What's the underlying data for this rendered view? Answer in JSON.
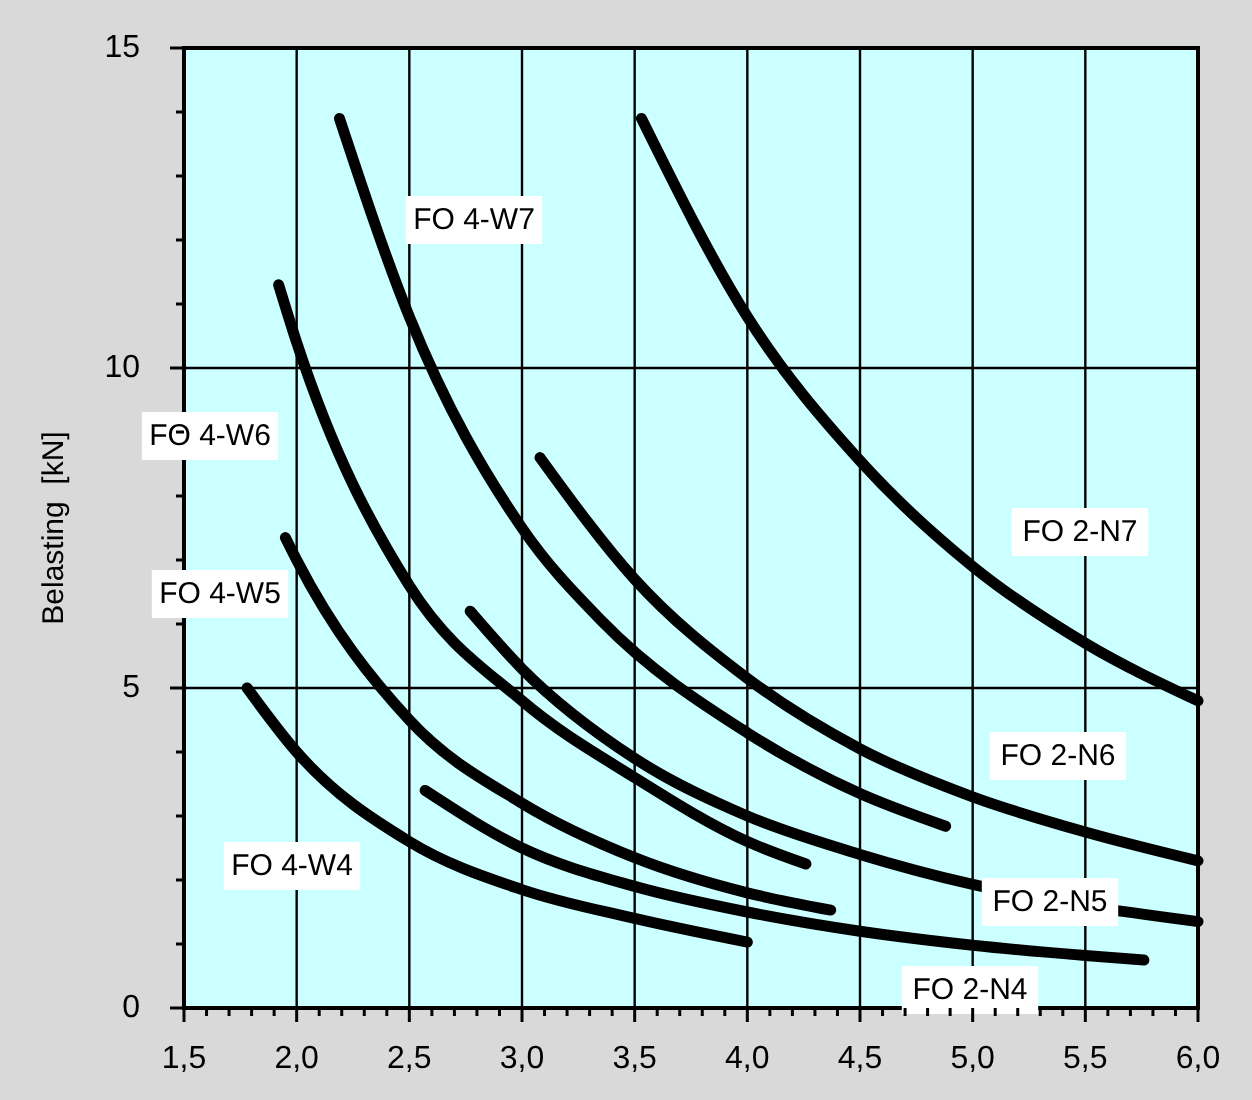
{
  "chart_data": {
    "type": "line",
    "ylabel": "Belasting  [kN]",
    "xlim": [
      1.5,
      6.0
    ],
    "ylim": [
      0,
      15
    ],
    "xticks": [
      {
        "value": 1.5,
        "label": "1,5"
      },
      {
        "value": 1.6,
        "label": null
      },
      {
        "value": 1.7,
        "label": null
      },
      {
        "value": 1.8,
        "label": null
      },
      {
        "value": 1.9,
        "label": null
      },
      {
        "value": 2.0,
        "label": "2,0"
      },
      {
        "value": 2.1,
        "label": null
      },
      {
        "value": 2.2,
        "label": null
      },
      {
        "value": 2.3,
        "label": null
      },
      {
        "value": 2.4,
        "label": null
      },
      {
        "value": 2.5,
        "label": "2,5"
      },
      {
        "value": 2.6,
        "label": null
      },
      {
        "value": 2.7,
        "label": null
      },
      {
        "value": 2.8,
        "label": null
      },
      {
        "value": 2.9,
        "label": null
      },
      {
        "value": 3.0,
        "label": "3,0"
      },
      {
        "value": 3.1,
        "label": null
      },
      {
        "value": 3.2,
        "label": null
      },
      {
        "value": 3.3,
        "label": null
      },
      {
        "value": 3.4,
        "label": null
      },
      {
        "value": 3.5,
        "label": "3,5"
      },
      {
        "value": 3.6,
        "label": null
      },
      {
        "value": 3.7,
        "label": null
      },
      {
        "value": 3.8,
        "label": null
      },
      {
        "value": 3.9,
        "label": null
      },
      {
        "value": 4.0,
        "label": "4,0"
      },
      {
        "value": 4.1,
        "label": null
      },
      {
        "value": 4.2,
        "label": null
      },
      {
        "value": 4.3,
        "label": null
      },
      {
        "value": 4.4,
        "label": null
      },
      {
        "value": 4.5,
        "label": "4,5"
      },
      {
        "value": 4.6,
        "label": null
      },
      {
        "value": 4.7,
        "label": null
      },
      {
        "value": 4.8,
        "label": null
      },
      {
        "value": 4.9,
        "label": null
      },
      {
        "value": 5.0,
        "label": "5,0"
      },
      {
        "value": 5.1,
        "label": null
      },
      {
        "value": 5.2,
        "label": null
      },
      {
        "value": 5.3,
        "label": null
      },
      {
        "value": 5.4,
        "label": null
      },
      {
        "value": 5.5,
        "label": "5,5"
      },
      {
        "value": 5.6,
        "label": null
      },
      {
        "value": 5.7,
        "label": null
      },
      {
        "value": 5.8,
        "label": null
      },
      {
        "value": 5.9,
        "label": null
      },
      {
        "value": 6.0,
        "label": "6,0"
      }
    ],
    "yticks": [
      0,
      {
        "value": 1,
        "label": null
      },
      {
        "value": 2,
        "label": null
      },
      {
        "value": 3,
        "label": null
      },
      {
        "value": 4,
        "label": null
      },
      5,
      {
        "value": 6,
        "label": null
      },
      {
        "value": 7,
        "label": null
      },
      {
        "value": 8,
        "label": null
      },
      {
        "value": 9,
        "label": null
      },
      10,
      {
        "value": 11,
        "label": null
      },
      {
        "value": 12,
        "label": null
      },
      {
        "value": 13,
        "label": null
      },
      {
        "value": 14,
        "label": null
      },
      15
    ],
    "grid": true,
    "marker": "none",
    "line_style": "solid",
    "series": [
      {
        "color": "#000000",
        "x": [
          2.19,
          2.5,
          3.0,
          3.35,
          4.0,
          4.5,
          4.88
        ],
        "values": [
          13.9,
          10.8,
          7.5,
          6.06,
          4.3,
          3.35,
          2.84
        ]
      },
      {
        "color": "#000000",
        "x": [
          1.92,
          2.0,
          2.5,
          3.0,
          3.5,
          4.0,
          4.26
        ],
        "values": [
          11.3,
          10.4,
          6.6,
          4.8,
          3.6,
          2.6,
          2.25
        ]
      },
      {
        "color": "#000000",
        "x": [
          1.95,
          2.0,
          2.5,
          3.0,
          3.5,
          4.0,
          4.37
        ],
        "values": [
          7.35,
          7.0,
          4.5,
          3.2,
          2.35,
          1.8,
          1.53
        ]
      },
      {
        "color": "#000000",
        "x": [
          1.78,
          2.0,
          2.5,
          3.0,
          3.5,
          4.0
        ],
        "values": [
          5.0,
          4.0,
          2.6,
          1.85,
          1.4,
          1.03
        ]
      },
      {
        "color": "#000000",
        "x": [
          3.53,
          4.0,
          4.5,
          5.0,
          5.5,
          6.0
        ],
        "values": [
          13.9,
          10.8,
          8.55,
          6.9,
          5.7,
          4.8
        ]
      },
      {
        "color": "#000000",
        "x": [
          3.08,
          3.5,
          4.0,
          4.5,
          5.0,
          5.5,
          6.0
        ],
        "values": [
          8.6,
          6.7,
          5.15,
          4.05,
          3.3,
          2.75,
          2.3
        ]
      },
      {
        "color": "#000000",
        "x": [
          2.77,
          3.0,
          3.5,
          4.0,
          4.5,
          5.0,
          6.0
        ],
        "values": [
          6.2,
          5.3,
          3.9,
          3.0,
          2.4,
          1.93,
          1.35
        ]
      },
      {
        "color": "#000000",
        "x": [
          2.57,
          3.0,
          3.5,
          4.0,
          4.5,
          5.0,
          5.5,
          5.76
        ],
        "values": [
          3.4,
          2.5,
          1.9,
          1.5,
          1.2,
          0.98,
          0.82,
          0.75
        ]
      }
    ],
    "annotations": [
      "FO 4-W7",
      "FO 4-W6",
      "FO 4-W5",
      "FO 4-W4",
      "FO 2-N7",
      "FO 2-N6",
      "FO 2-N5",
      "FO 2-N4"
    ]
  }
}
